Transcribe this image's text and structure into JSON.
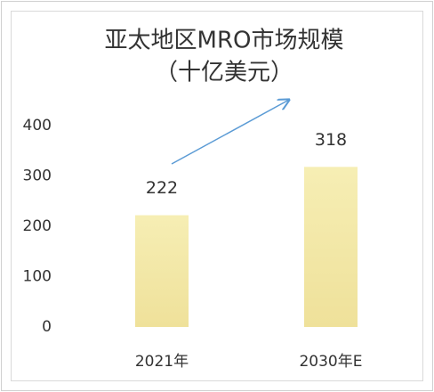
{
  "chart_data": {
    "type": "bar",
    "title": "亚太地区MRO市场规模",
    "subtitle": "（十亿美元）",
    "categories": [
      "2021年",
      "2030年E"
    ],
    "values": [
      222,
      318
    ],
    "color": "#f3e7a6",
    "ylim": [
      0,
      400
    ],
    "yticks": [
      0,
      100,
      200,
      300,
      400
    ],
    "grid": false
  }
}
